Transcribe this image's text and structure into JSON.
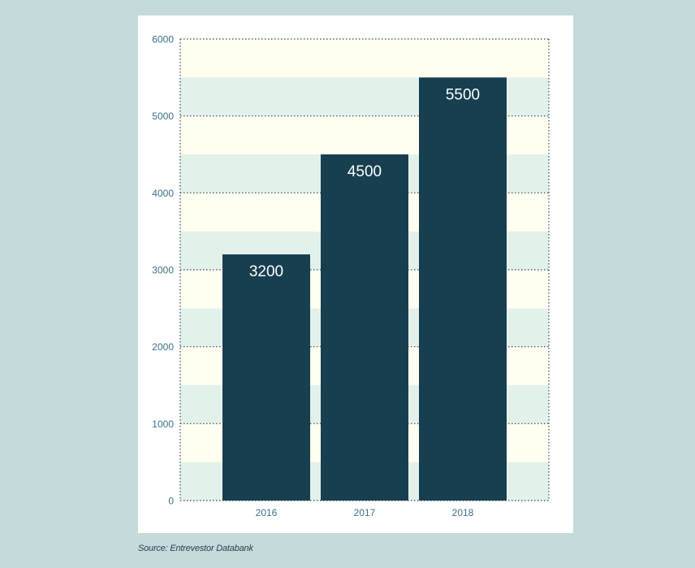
{
  "chart_data": {
    "type": "bar",
    "categories": [
      "2016",
      "2017",
      "2018"
    ],
    "values": [
      3200,
      4500,
      5500
    ],
    "data_labels": [
      "3200",
      "4500",
      "5500"
    ],
    "yticks": [
      "0",
      "1000",
      "2000",
      "3000",
      "4000",
      "5000",
      "6000"
    ],
    "ylim": [
      0,
      6000
    ],
    "grid": true,
    "colors": {
      "bar": "#173f50",
      "band_a": "#fffef0",
      "band_b": "#e3f1eb",
      "grid": "#2f4a55",
      "tick_text": "#3a7185",
      "label_text": "#ffffff"
    }
  },
  "source": {
    "text": "Source: Entrevestor Databank"
  }
}
